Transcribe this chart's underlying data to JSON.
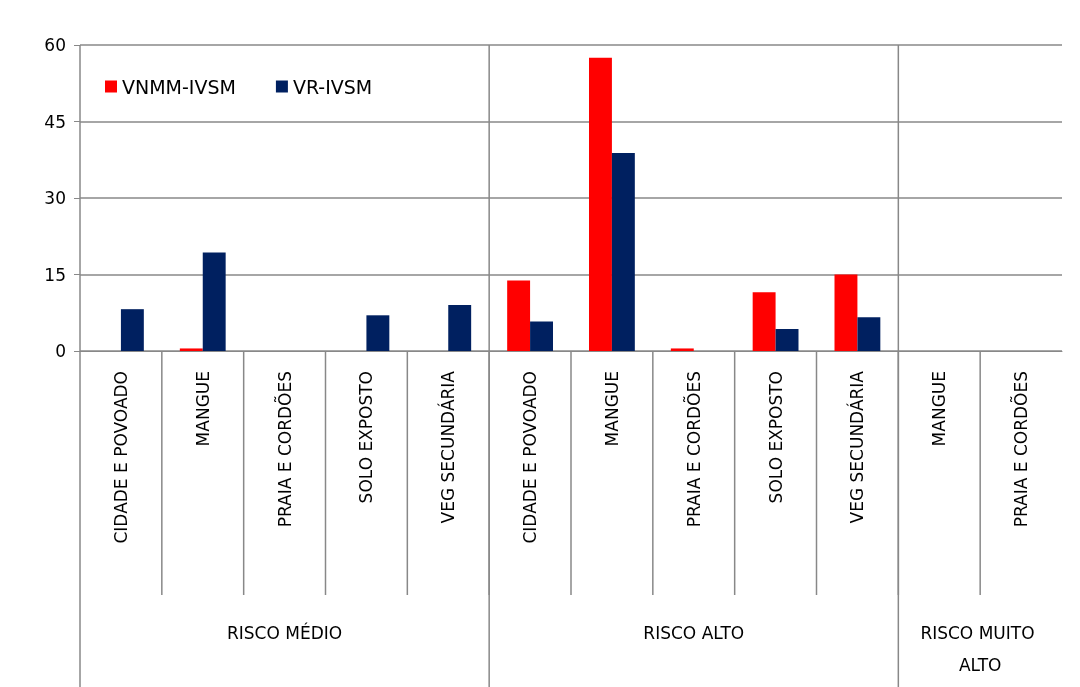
{
  "chart_data": {
    "type": "bar",
    "categories": [
      "CIDADE E POVOADO",
      "MANGUE",
      "PRAIA E CORDÕES",
      "SOLO EXPOSTO",
      "VEG SECUNDÁRIA",
      "CIDADE E POVOADO",
      "MANGUE",
      "PRAIA E CORDÕES",
      "SOLO EXPOSTO",
      "VEG SECUNDÁRIA",
      "MANGUE",
      "PRAIA E CORDÕES"
    ],
    "series": [
      {
        "name": "VNMM-IVSM",
        "color": "#ff0000",
        "values": [
          0,
          0.5,
          0,
          0,
          0,
          13.8,
          57.5,
          0.5,
          11.5,
          15,
          0,
          0
        ]
      },
      {
        "name": "VR-IVSM",
        "color": "#002060",
        "values": [
          8.2,
          19.3,
          0,
          7,
          9,
          5.8,
          38.8,
          0,
          4.3,
          6.6,
          0,
          0
        ]
      }
    ],
    "annotations": [
      "RISCO MÉDIO",
      "RISCO ALTO",
      "RISCO MUITO ALTO"
    ],
    "ylim": [
      0,
      60
    ],
    "yticks": [
      0,
      15,
      30,
      45,
      60
    ],
    "grid": "y",
    "legend": "top left"
  }
}
